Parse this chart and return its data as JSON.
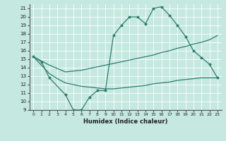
{
  "xlabel": "Humidex (Indice chaleur)",
  "xlim": [
    -0.5,
    23.5
  ],
  "ylim": [
    9,
    21.5
  ],
  "yticks": [
    9,
    10,
    11,
    12,
    13,
    14,
    15,
    16,
    17,
    18,
    19,
    20,
    21
  ],
  "xticks": [
    0,
    1,
    2,
    3,
    4,
    5,
    6,
    7,
    8,
    9,
    10,
    11,
    12,
    13,
    14,
    15,
    16,
    17,
    18,
    19,
    20,
    21,
    22,
    23
  ],
  "line_color": "#2d7d6e",
  "bg_color": "#c5e8e0",
  "grid_color": "#b0d8cf",
  "line1_x": [
    0,
    1,
    2,
    4,
    5,
    6,
    7,
    8,
    9,
    10,
    11,
    12,
    13,
    14,
    15,
    16,
    17,
    18,
    19,
    20,
    21,
    22,
    23
  ],
  "line1_y": [
    15.3,
    14.7,
    12.8,
    10.8,
    9.0,
    9.0,
    10.5,
    11.3,
    11.3,
    17.8,
    19.0,
    20.0,
    20.0,
    19.2,
    21.0,
    21.2,
    20.2,
    19.0,
    17.7,
    16.0,
    15.2,
    14.4,
    12.8
  ],
  "line2_x": [
    0,
    1,
    2,
    3,
    4,
    5,
    6,
    7,
    8,
    9,
    10,
    11,
    12,
    13,
    14,
    15,
    16,
    17,
    18,
    19,
    20,
    21,
    22,
    23
  ],
  "line2_y": [
    15.3,
    14.8,
    14.3,
    13.9,
    13.5,
    13.6,
    13.7,
    13.9,
    14.1,
    14.3,
    14.5,
    14.7,
    14.9,
    15.1,
    15.3,
    15.5,
    15.8,
    16.0,
    16.3,
    16.5,
    16.8,
    17.0,
    17.3,
    17.8
  ],
  "line3_x": [
    0,
    1,
    2,
    3,
    4,
    5,
    6,
    7,
    8,
    9,
    10,
    11,
    12,
    13,
    14,
    15,
    16,
    17,
    18,
    19,
    20,
    21,
    22,
    23
  ],
  "line3_y": [
    15.3,
    14.3,
    13.3,
    12.7,
    12.2,
    12.0,
    11.8,
    11.7,
    11.6,
    11.5,
    11.5,
    11.6,
    11.7,
    11.8,
    11.9,
    12.1,
    12.2,
    12.3,
    12.5,
    12.6,
    12.7,
    12.8,
    12.8,
    12.8
  ]
}
